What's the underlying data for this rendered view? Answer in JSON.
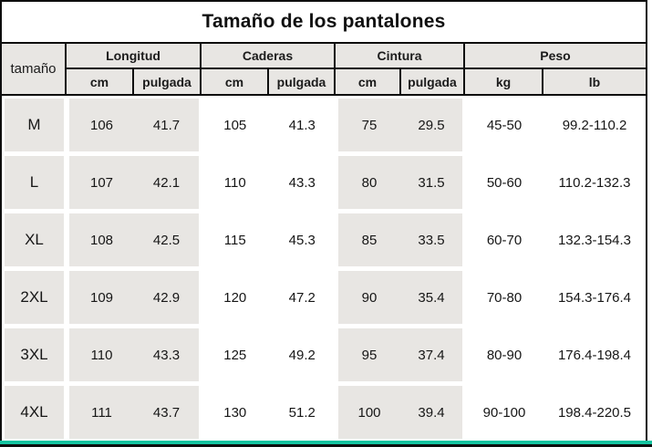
{
  "title": "Tamaño de los pantalones",
  "table": {
    "size_label": "tamaño",
    "groups": [
      {
        "label": "Longitud",
        "sub": [
          "cm",
          "pulgada"
        ]
      },
      {
        "label": "Caderas",
        "sub": [
          "cm",
          "pulgada"
        ]
      },
      {
        "label": "Cintura",
        "sub": [
          "cm",
          "pulgada"
        ]
      },
      {
        "label": "Peso",
        "sub": [
          "kg",
          "lb"
        ]
      }
    ],
    "rows": [
      {
        "size": "M",
        "values": [
          "106",
          "41.7",
          "105",
          "41.3",
          "75",
          "29.5",
          "45-50",
          "99.2-110.2"
        ]
      },
      {
        "size": "L",
        "values": [
          "107",
          "42.1",
          "110",
          "43.3",
          "80",
          "31.5",
          "50-60",
          "110.2-132.3"
        ]
      },
      {
        "size": "XL",
        "values": [
          "108",
          "42.5",
          "115",
          "45.3",
          "85",
          "33.5",
          "60-70",
          "132.3-154.3"
        ]
      },
      {
        "size": "2XL",
        "values": [
          "109",
          "42.9",
          "120",
          "47.2",
          "90",
          "35.4",
          "70-80",
          "154.3-176.4"
        ]
      },
      {
        "size": "3XL",
        "values": [
          "110",
          "43.3",
          "125",
          "49.2",
          "95",
          "37.4",
          "80-90",
          "176.4-198.4"
        ]
      },
      {
        "size": "4XL",
        "values": [
          "111",
          "43.7",
          "130",
          "51.2",
          "100",
          "39.4",
          "90-100",
          "198.4-220.5"
        ]
      }
    ]
  },
  "colors": {
    "cell_gray": "#e8e6e3",
    "border_black": "#0e0e0e",
    "accent_teal": "#14c4a0"
  },
  "chart_data": {
    "type": "table",
    "title": "Tamaño de los pantalones",
    "columns": [
      "tamaño",
      "Longitud cm",
      "Longitud pulgada",
      "Caderas cm",
      "Caderas pulgada",
      "Cintura cm",
      "Cintura pulgada",
      "Peso kg",
      "Peso lb"
    ],
    "rows": [
      [
        "M",
        106,
        41.7,
        105,
        41.3,
        75,
        29.5,
        "45-50",
        "99.2-110.2"
      ],
      [
        "L",
        107,
        42.1,
        110,
        43.3,
        80,
        31.5,
        "50-60",
        "110.2-132.3"
      ],
      [
        "XL",
        108,
        42.5,
        115,
        45.3,
        85,
        33.5,
        "60-70",
        "132.3-154.3"
      ],
      [
        "2XL",
        109,
        42.9,
        120,
        47.2,
        90,
        35.4,
        "70-80",
        "154.3-176.4"
      ],
      [
        "3XL",
        110,
        43.3,
        125,
        49.2,
        95,
        37.4,
        "80-90",
        "176.4-198.4"
      ],
      [
        "4XL",
        111,
        43.7,
        130,
        51.2,
        100,
        39.4,
        "90-100",
        "198.4-220.5"
      ]
    ]
  }
}
